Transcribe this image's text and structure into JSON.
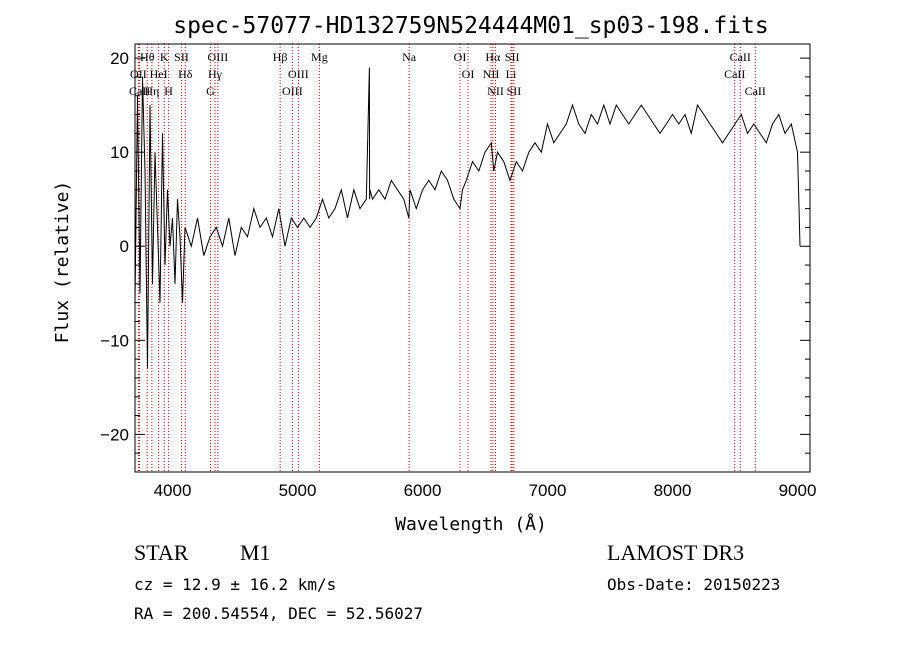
{
  "chart_data": {
    "type": "line",
    "title": "spec-57077-HD132759N524444M01_sp03-198.fits",
    "xlabel": "Wavelength (Å)",
    "ylabel": "Flux (relative)",
    "xlim": [
      3700,
      9100
    ],
    "ylim": [
      -24,
      21.5
    ],
    "xticks": [
      4000,
      5000,
      6000,
      7000,
      8000,
      9000
    ],
    "yticks": [
      -20,
      -10,
      0,
      10,
      20
    ],
    "grid": false,
    "series": [
      {
        "x": [
          3700,
          3720,
          3740,
          3760,
          3780,
          3800,
          3820,
          3840,
          3860,
          3880,
          3900,
          3920,
          3940,
          3960,
          3980,
          4000,
          4020,
          4040,
          4060,
          4080,
          4100,
          4150,
          4200,
          4250,
          4300,
          4350,
          4400,
          4450,
          4500,
          4550,
          4600,
          4650,
          4700,
          4750,
          4800,
          4850,
          4900,
          4950,
          5000,
          5050,
          5100,
          5150,
          5200,
          5250,
          5300,
          5350,
          5400,
          5450,
          5500,
          5550,
          5575,
          5577,
          5580,
          5600,
          5650,
          5700,
          5750,
          5800,
          5850,
          5890,
          5900,
          5950,
          6000,
          6050,
          6100,
          6150,
          6200,
          6250,
          6300,
          6320,
          6350,
          6400,
          6450,
          6500,
          6550,
          6570,
          6600,
          6650,
          6700,
          6750,
          6800,
          6850,
          6900,
          6950,
          7000,
          7050,
          7100,
          7150,
          7200,
          7250,
          7300,
          7350,
          7400,
          7450,
          7500,
          7550,
          7600,
          7650,
          7700,
          7750,
          7800,
          7850,
          7900,
          7950,
          8000,
          8050,
          8100,
          8150,
          8200,
          8250,
          8300,
          8350,
          8400,
          8450,
          8500,
          8550,
          8600,
          8650,
          8700,
          8750,
          8800,
          8850,
          8900,
          8950,
          9000,
          9010,
          9020
        ],
        "y": [
          -6,
          16,
          -5,
          18,
          8,
          -13,
          15,
          -4,
          10,
          2,
          -6,
          12,
          -2,
          6,
          0,
          3,
          -4,
          5,
          1,
          -6,
          2,
          0,
          3,
          -1,
          1,
          2,
          0,
          3,
          -1,
          2,
          1,
          4,
          2,
          3,
          1,
          4,
          0,
          3,
          2,
          3,
          2,
          3,
          5,
          3,
          4,
          6,
          3,
          6,
          4,
          5,
          19,
          5,
          6,
          5,
          6,
          5,
          7,
          6,
          5,
          3,
          6,
          4,
          6,
          7,
          6,
          8,
          7,
          5,
          4,
          6,
          7,
          9,
          8,
          10,
          11,
          8,
          10,
          9,
          7,
          9,
          8,
          10,
          11,
          10,
          13,
          11,
          12,
          13,
          15,
          13,
          12,
          14,
          13,
          15,
          13,
          15,
          14,
          13,
          14,
          15,
          14,
          13,
          12,
          13,
          14,
          13,
          14,
          12,
          15,
          14,
          13,
          12,
          11,
          12,
          13,
          14,
          12,
          13,
          12,
          11,
          13,
          14,
          12,
          13,
          10,
          5,
          0
        ]
      }
    ],
    "lines": [
      {
        "label": "Hθ",
        "x": 3798
      },
      {
        "label": "OII",
        "x": 3727
      },
      {
        "label": "CaII",
        "x": 3737
      },
      {
        "label": "Hη",
        "x": 3835
      },
      {
        "label": "HeI",
        "x": 3889
      },
      {
        "label": "K",
        "x": 3934
      },
      {
        "label": "H",
        "x": 3969
      },
      {
        "label": "SII",
        "x": 4072
      },
      {
        "label": "Hδ",
        "x": 4102
      },
      {
        "label": "OIII",
        "x": 4363
      },
      {
        "label": "Hγ",
        "x": 4340
      },
      {
        "label": "G",
        "x": 4304
      },
      {
        "label": "Hβ",
        "x": 4861
      },
      {
        "label": "OIII",
        "x": 5007
      },
      {
        "label": "OIII",
        "x": 4959
      },
      {
        "label": "Mg",
        "x": 5175
      },
      {
        "label": "Na",
        "x": 5893
      },
      {
        "label": "OI",
        "x": 6300
      },
      {
        "label": "OI",
        "x": 6364
      },
      {
        "label": "Hα",
        "x": 6563
      },
      {
        "label": "NII",
        "x": 6548
      },
      {
        "label": "NII",
        "x": 6584
      },
      {
        "label": "SII",
        "x": 6717
      },
      {
        "label": "Li",
        "x": 6708
      },
      {
        "label": "SII",
        "x": 6731
      },
      {
        "label": "CaII",
        "x": 8542
      },
      {
        "label": "CaII",
        "x": 8498
      },
      {
        "label": "CaII",
        "x": 8662
      }
    ],
    "colors": {
      "spectrum": "#000000",
      "line_marker": "#c00000",
      "axes": "#000000"
    }
  },
  "info": {
    "class": "STAR",
    "subclass": "M1",
    "survey": "LAMOST DR3",
    "cz": "cz = 12.9 ± 16.2 km/s",
    "obs_date": "Obs-Date: 20150223",
    "coords": "RA = 200.54554, DEC =  52.56027"
  }
}
